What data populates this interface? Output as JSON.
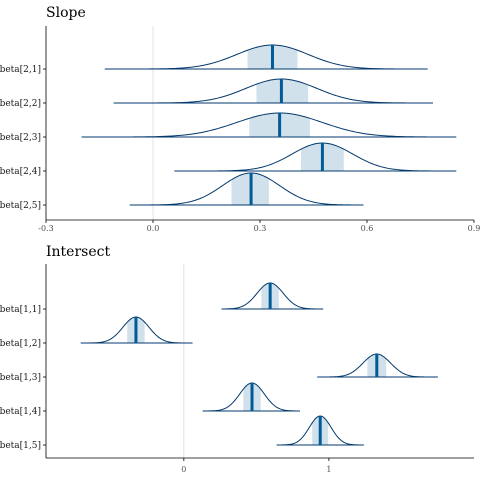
{
  "chart_data": [
    {
      "type": "ridgeline",
      "title": "Slope",
      "xlim": [
        -0.3,
        0.9
      ],
      "xticks": [
        "-0.3",
        "0.0",
        "0.3",
        "0.6",
        "0.9"
      ],
      "xtick_values": [
        -0.3,
        0.0,
        0.3,
        0.6,
        0.9
      ],
      "reference_line": 0.0,
      "parameters": [
        {
          "label": "beta[2,1]",
          "median": 0.335,
          "ci50": [
            0.265,
            0.405
          ],
          "range": [
            -0.135,
            0.77
          ],
          "sd": 0.1
        },
        {
          "label": "beta[2,2]",
          "median": 0.36,
          "ci50": [
            0.29,
            0.435
          ],
          "range": [
            -0.11,
            0.785
          ],
          "sd": 0.1
        },
        {
          "label": "beta[2,3]",
          "median": 0.355,
          "ci50": [
            0.27,
            0.44
          ],
          "range": [
            -0.2,
            0.85
          ],
          "sd": 0.12
        },
        {
          "label": "beta[2,4]",
          "median": 0.475,
          "ci50": [
            0.415,
            0.535
          ],
          "range": [
            0.06,
            0.85
          ],
          "sd": 0.085
        },
        {
          "label": "beta[2,5]",
          "median": 0.275,
          "ci50": [
            0.22,
            0.325
          ],
          "range": [
            -0.065,
            0.59
          ],
          "sd": 0.08
        }
      ]
    },
    {
      "type": "ridgeline",
      "title": "Intersect",
      "xlim": [
        -0.95,
        2.0
      ],
      "xticks": [
        "0",
        "1"
      ],
      "xtick_values": [
        0,
        1
      ],
      "reference_line": 0,
      "parameters": [
        {
          "label": "beta[1,1]",
          "median": 0.595,
          "ci50": [
            0.535,
            0.655
          ],
          "range": [
            0.26,
            0.96
          ],
          "sd": 0.09
        },
        {
          "label": "beta[1,2]",
          "median": -0.33,
          "ci50": [
            -0.39,
            -0.27
          ],
          "range": [
            -0.71,
            0.06
          ],
          "sd": 0.09
        },
        {
          "label": "beta[1,3]",
          "median": 1.33,
          "ci50": [
            1.265,
            1.395
          ],
          "range": [
            0.92,
            1.75
          ],
          "sd": 0.095
        },
        {
          "label": "beta[1,4]",
          "median": 0.47,
          "ci50": [
            0.41,
            0.53
          ],
          "range": [
            0.13,
            0.8
          ],
          "sd": 0.085
        },
        {
          "label": "beta[1,5]",
          "median": 0.94,
          "ci50": [
            0.885,
            0.995
          ],
          "range": [
            0.64,
            1.24
          ],
          "sd": 0.075
        }
      ]
    }
  ]
}
